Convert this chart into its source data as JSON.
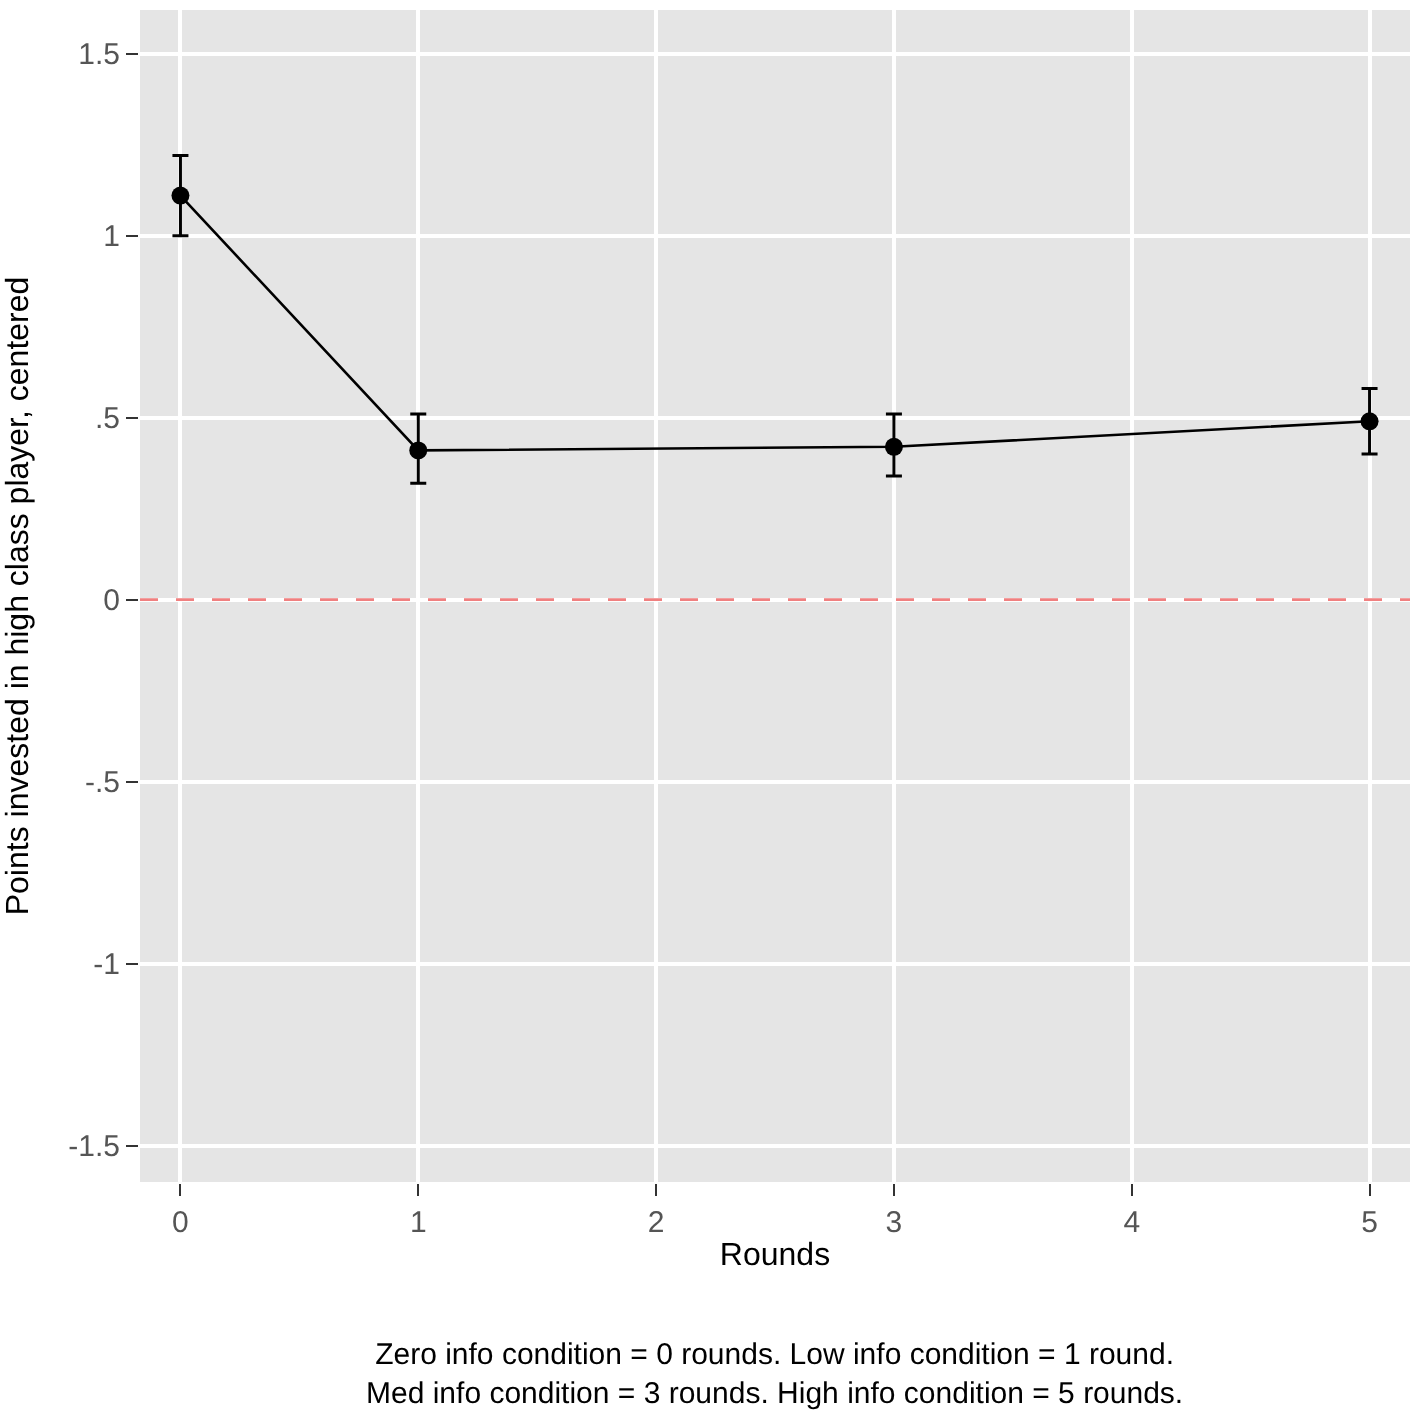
{
  "chart_data": {
    "type": "line",
    "xlabel": "Rounds",
    "ylabel": "Points invested in high class player, centered",
    "x": [
      0,
      1,
      3,
      5
    ],
    "series": [
      {
        "color": "#000000",
        "values": [
          1.11,
          0.41,
          0.42,
          0.49
        ],
        "errors": [
          [
            1.0,
            1.22
          ],
          [
            0.32,
            0.51
          ],
          [
            0.34,
            0.51
          ],
          [
            0.4,
            0.58
          ]
        ]
      }
    ],
    "xlim": [
      -0.17,
      5.17
    ],
    "xticks": [
      0,
      1,
      2,
      3,
      4,
      5
    ],
    "ylim": [
      -1.6,
      1.62
    ],
    "yticks": [
      {
        "value": 1.5,
        "label": "1.5"
      },
      {
        "value": 1,
        "label": "1"
      },
      {
        "value": 0.5,
        "label": ".5"
      },
      {
        "value": 0,
        "label": "0"
      },
      {
        "value": -0.5,
        "label": "-.5"
      },
      {
        "value": -1,
        "label": "-1"
      },
      {
        "value": -1.5,
        "label": "-1.5"
      }
    ],
    "ref_lines": [
      {
        "axis": "y",
        "value": 0,
        "color": "#f08080",
        "line_style": "dashed"
      }
    ],
    "grid": true,
    "marker": "circle",
    "line_style": "solid",
    "annotations": [
      "Zero info condition = 0 rounds. Low info condition = 1 round.\nMed info condition = 3 rounds. High info condition = 5 rounds."
    ]
  }
}
